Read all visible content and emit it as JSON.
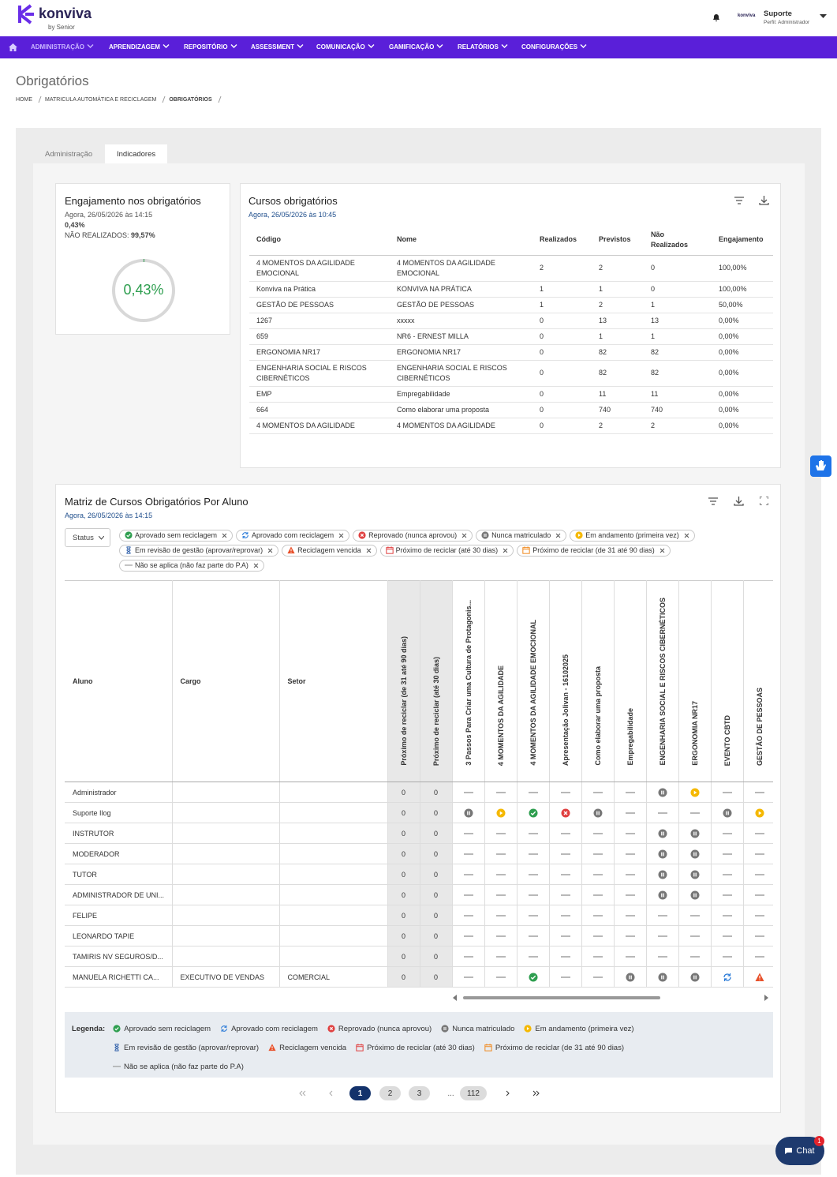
{
  "header": {
    "logo": "konviva",
    "logo_by": "by Senior",
    "mini_logo": "konviva",
    "user_name": "Suporte",
    "user_profile": "Perfil: Administrador"
  },
  "nav": [
    "ADMINISTRAÇÃO",
    "APRENDIZAGEM",
    "REPOSITÓRIO",
    "ASSESSMENT",
    "COMUNICAÇÃO",
    "GAMIFICAÇÃO",
    "RELATÓRIOS",
    "CONFIGURAÇÕES"
  ],
  "page_title": "Obrigatórios",
  "breadcrumb": [
    "HOME",
    "MATRICULA AUTOMÁTICA E RECICLAGEM",
    "OBRIGATÓRIOS"
  ],
  "tabs": [
    "Administração",
    "Indicadores"
  ],
  "engagement": {
    "title": "Engajamento nos obrigatórios",
    "date": "Agora, 26/05/2026 às 14:15",
    "value": "0,43%",
    "not_done_label": "NÃO REALIZADOS:",
    "not_done_value": "99,57%"
  },
  "courses": {
    "title": "Cursos obrigatórios",
    "date": "Agora, 26/05/2026 às 10:45",
    "columns": [
      "Código",
      "Nome",
      "Realizados",
      "Previstos",
      "Não Realizados",
      "Engajamento"
    ],
    "rows": [
      [
        "4 MOMENTOS DA AGILIDADE EMOCIONAL",
        "4 MOMENTOS DA AGILIDADE EMOCIONAL",
        2,
        2,
        0,
        "100,00%"
      ],
      [
        "Konviva na Prática",
        "KONVIVA NA PRÁTICA",
        1,
        1,
        0,
        "100,00%"
      ],
      [
        "GESTÃO DE PESSOAS",
        "GESTÃO DE PESSOAS",
        1,
        2,
        1,
        "50,00%"
      ],
      [
        "1267",
        "xxxxx",
        0,
        13,
        13,
        "0,00%"
      ],
      [
        "659",
        "NR6 - ERNEST MILLA",
        0,
        1,
        1,
        "0,00%"
      ],
      [
        "ERGONOMIA NR17",
        "ERGONOMIA NR17",
        0,
        82,
        82,
        "0,00%"
      ],
      [
        "ENGENHARIA SOCIAL E RISCOS CIBERNÉTICOS",
        "ENGENHARIA SOCIAL E RISCOS CIBERNÉTICOS",
        0,
        82,
        82,
        "0,00%"
      ],
      [
        "EMP",
        "Empregabilidade",
        0,
        11,
        11,
        "0,00%"
      ],
      [
        "664",
        "Como elaborar uma proposta",
        0,
        740,
        740,
        "0,00%"
      ],
      [
        "4 MOMENTOS DA AGILIDADE",
        "4 MOMENTOS DA AGILIDADE",
        0,
        2,
        2,
        "0,00%"
      ]
    ]
  },
  "matrix": {
    "title": "Matriz de Cursos Obrigatórios Por Aluno",
    "date": "Agora, 26/05/2026 às 14:15",
    "status_filter": "Status",
    "fixed_columns": [
      "Aluno",
      "Cargo",
      "Setor"
    ],
    "rotated_columns": [
      "Próximo de reciclar (de 31 até 90 dias)",
      "Próximo de reciclar (até 30 dias)",
      "3 Passos Para Criar uma Cultura de Protagonis...",
      "4 MOMENTOS DA AGILIDADE",
      "4 MOMENTOS DA AGILIDADE EMOCIONAL",
      "Apresentação Jolivan - 16102025",
      "Como elaborar uma proposta",
      "Empregabilidade",
      "ENGENHARIA SOCIAL E RISCOS CIBERNÉTICOS",
      "ERGONOMIA NR17",
      "EVENTO CBTD",
      "GESTÃO DE PESSOAS"
    ],
    "rows": [
      {
        "aluno": "Administrador",
        "cargo": null,
        "setor": null,
        "recycle_90": 0,
        "recycle_30": 0,
        "status": [
          "dash",
          "dash",
          "dash",
          "dash",
          "dash",
          "dash",
          "pause",
          "play",
          "dash",
          "dash"
        ]
      },
      {
        "aluno": "Suporte Ilog",
        "cargo": null,
        "setor": null,
        "recycle_90": 0,
        "recycle_30": 0,
        "status": [
          "pause",
          "play",
          "ok",
          "fail",
          "pause",
          "dash",
          "dash",
          "dash",
          "pause",
          "play"
        ]
      },
      {
        "aluno": "INSTRUTOR",
        "cargo": null,
        "setor": null,
        "recycle_90": 0,
        "recycle_30": 0,
        "status": [
          "dash",
          "dash",
          "dash",
          "dash",
          "dash",
          "dash",
          "pause",
          "pause",
          "dash",
          "dash"
        ]
      },
      {
        "aluno": "MODERADOR",
        "cargo": null,
        "setor": null,
        "recycle_90": 0,
        "recycle_30": 0,
        "status": [
          "dash",
          "dash",
          "dash",
          "dash",
          "dash",
          "dash",
          "pause",
          "pause",
          "dash",
          "dash"
        ]
      },
      {
        "aluno": "TUTOR",
        "cargo": null,
        "setor": null,
        "recycle_90": 0,
        "recycle_30": 0,
        "status": [
          "dash",
          "dash",
          "dash",
          "dash",
          "dash",
          "dash",
          "pause",
          "pause",
          "dash",
          "dash"
        ]
      },
      {
        "aluno": "ADMINISTRADOR DE UNI...",
        "cargo": null,
        "setor": null,
        "recycle_90": 0,
        "recycle_30": 0,
        "status": [
          "dash",
          "dash",
          "dash",
          "dash",
          "dash",
          "dash",
          "pause",
          "pause",
          "dash",
          "dash"
        ]
      },
      {
        "aluno": "FELIPE",
        "cargo": null,
        "setor": null,
        "recycle_90": 0,
        "recycle_30": 0,
        "status": [
          "dash",
          "dash",
          "dash",
          "dash",
          "dash",
          "dash",
          "dash",
          "dash",
          "dash",
          "dash"
        ]
      },
      {
        "aluno": "LEONARDO TAPIE",
        "cargo": null,
        "setor": null,
        "recycle_90": 0,
        "recycle_30": 0,
        "status": [
          "dash",
          "dash",
          "dash",
          "dash",
          "dash",
          "dash",
          "dash",
          "dash",
          "dash",
          "dash"
        ]
      },
      {
        "aluno": "TAMIRIS NV SEGUROS/D...",
        "cargo": null,
        "setor": null,
        "recycle_90": 0,
        "recycle_30": 0,
        "status": [
          "dash",
          "dash",
          "dash",
          "dash",
          "dash",
          "dash",
          "dash",
          "dash",
          "dash",
          "dash"
        ]
      },
      {
        "aluno": "MANUELA RICHETTI CA...",
        "cargo": "EXECUTIVO DE VENDAS",
        "setor": "COMERCIAL",
        "recycle_90": 0,
        "recycle_30": 0,
        "status": [
          "dash",
          "dash",
          "ok",
          "dash",
          "dash",
          "pause",
          "pause",
          "pause",
          "sync",
          "warn"
        ]
      }
    ]
  },
  "legend": {
    "title": "Legenda:",
    "items": [
      {
        "icon": "ok",
        "label": "Aprovado sem reciclagem"
      },
      {
        "icon": "sync",
        "label": "Aprovado com reciclagem"
      },
      {
        "icon": "fail",
        "label": "Reprovado (nunca aprovou)"
      },
      {
        "icon": "pause",
        "label": "Nunca matriculado"
      },
      {
        "icon": "play",
        "label": "Em andamento (primeira vez)"
      },
      {
        "icon": "hourglass",
        "label": "Em revisão de gestão (aprovar/reprovar)"
      },
      {
        "icon": "warn",
        "label": "Reciclagem vencida"
      },
      {
        "icon": "cal30",
        "label": "Próximo de reciclar (até 30 dias)"
      },
      {
        "icon": "cal90",
        "label": "Próximo de reciclar (de 31 até 90 dias)"
      },
      {
        "icon": "dash",
        "label": "Não se aplica (não faz parte do P.A)"
      }
    ]
  },
  "pagination": {
    "pages": [
      "1",
      "2",
      "3",
      "...",
      "112"
    ]
  },
  "chat": {
    "label": "Chat",
    "badge": 1
  }
}
